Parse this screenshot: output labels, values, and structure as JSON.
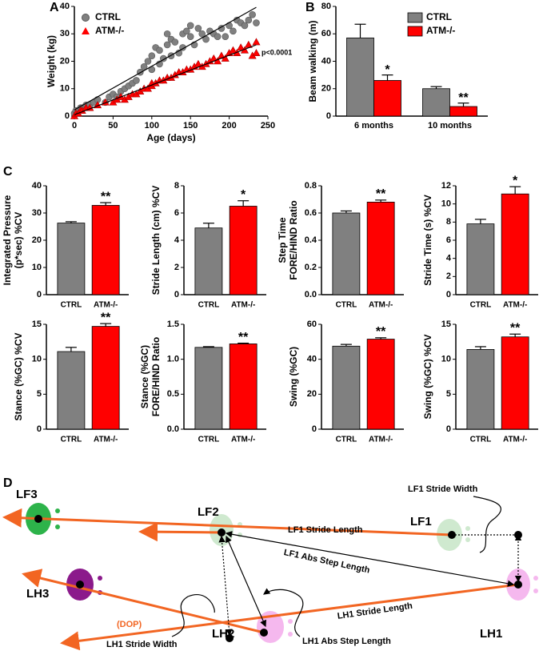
{
  "chart_data": [
    {
      "type": "scatter",
      "panel": "A",
      "xlabel": "Age (days)",
      "ylabel": "Weight (kg)",
      "xlim": [
        0,
        250
      ],
      "xticks": [
        0,
        50,
        100,
        150,
        200,
        250
      ],
      "ylim": [
        0,
        40
      ],
      "yticks": [
        0,
        10,
        20,
        30,
        40
      ],
      "annotation": "p<0.0001",
      "trendline": true,
      "series": [
        {
          "name": "CTRL",
          "color": "#808080",
          "marker": "circle",
          "x": [
            0,
            2,
            5,
            8,
            10,
            15,
            20,
            25,
            30,
            40,
            45,
            50,
            55,
            60,
            65,
            70,
            75,
            80,
            85,
            90,
            95,
            100,
            100,
            105,
            110,
            110,
            115,
            120,
            120,
            125,
            125,
            130,
            135,
            140,
            140,
            145,
            150,
            150,
            155,
            160,
            165,
            170,
            175,
            180,
            185,
            190,
            195,
            200,
            205,
            210,
            215,
            220,
            225,
            230,
            235
          ],
          "y": [
            1,
            2,
            2,
            3,
            3,
            4,
            4,
            5,
            6,
            5,
            7,
            8,
            7,
            9,
            10,
            11,
            12,
            13,
            16,
            18,
            20,
            17,
            22,
            25,
            19,
            24,
            21,
            26,
            30,
            28,
            22,
            27,
            23,
            30,
            25,
            31,
            29,
            33,
            26,
            32,
            30,
            28,
            31,
            30,
            29,
            32,
            29,
            33,
            31,
            35,
            34,
            33,
            35,
            37,
            34
          ]
        },
        {
          "name": "ATM-/-",
          "color": "#ff0000",
          "marker": "triangle",
          "x": [
            0,
            2,
            5,
            8,
            10,
            15,
            20,
            30,
            40,
            50,
            55,
            60,
            65,
            70,
            75,
            80,
            85,
            90,
            95,
            100,
            100,
            105,
            110,
            115,
            120,
            125,
            130,
            135,
            140,
            145,
            150,
            155,
            160,
            165,
            170,
            175,
            180,
            185,
            190,
            195,
            200,
            205,
            210,
            215,
            220,
            225,
            230,
            235,
            235
          ],
          "y": [
            0,
            1,
            1,
            2,
            2,
            3,
            3,
            4,
            5,
            5,
            6,
            7,
            6,
            7,
            8,
            8,
            9,
            10,
            10,
            11,
            12,
            12,
            13,
            13,
            14,
            14,
            15,
            16,
            16,
            17,
            17,
            18,
            19,
            18,
            19,
            20,
            21,
            20,
            22,
            21,
            23,
            24,
            23,
            25,
            24,
            26,
            22,
            27,
            23
          ]
        }
      ]
    },
    {
      "type": "grouped-bar",
      "panel": "B",
      "ylabel": "Beam walking (m)",
      "categories": [
        "6 months",
        "10 months"
      ],
      "ylim": [
        0,
        80
      ],
      "yticks": [
        0,
        20,
        40,
        60,
        80
      ],
      "series": [
        {
          "name": "CTRL",
          "color": "#808080",
          "values": [
            57,
            20
          ],
          "errors": [
            10,
            1.5
          ]
        },
        {
          "name": "ATM-/-",
          "color": "#ff0000",
          "values": [
            26,
            7
          ],
          "errors": [
            4,
            2.5
          ],
          "annotations": [
            "*",
            "**"
          ]
        }
      ]
    },
    {
      "type": "bar",
      "panel": "C",
      "ylabel": [
        "Integrated Pressure",
        "(p*sec) %CV"
      ],
      "categories": [
        "CTRL",
        "ATM-/-"
      ],
      "colors": [
        "#808080",
        "#ff0000"
      ],
      "values": [
        26.3,
        32.8
      ],
      "errors": [
        0.5,
        1.0
      ],
      "annotation": "**",
      "ylim": [
        0,
        40
      ],
      "yticks": [
        0,
        10,
        20,
        30,
        40
      ]
    },
    {
      "type": "bar",
      "ylabel": [
        "Stride Length (cm) %CV"
      ],
      "categories": [
        "CTRL",
        "ATM-/-"
      ],
      "colors": [
        "#808080",
        "#ff0000"
      ],
      "values": [
        4.9,
        6.5
      ],
      "errors": [
        0.35,
        0.4
      ],
      "annotation": "*",
      "ylim": [
        0,
        8
      ],
      "yticks": [
        0,
        2,
        4,
        6,
        8
      ]
    },
    {
      "type": "bar",
      "ylabel": [
        "Step Time",
        "FORE/HIND Ratio"
      ],
      "categories": [
        "CTRL",
        "ATM-/-"
      ],
      "colors": [
        "#808080",
        "#ff0000"
      ],
      "values": [
        0.6,
        0.68
      ],
      "errors": [
        0.015,
        0.015
      ],
      "annotation": "**",
      "ylim": [
        0,
        0.8
      ],
      "yticks": [
        {
          "value": 0,
          "label": "0.0"
        },
        0.2,
        0.4,
        0.6,
        0.8
      ]
    },
    {
      "type": "bar",
      "ylabel": [
        "Stride Time (s) %CV"
      ],
      "categories": [
        "CTRL",
        "ATM-/-"
      ],
      "colors": [
        "#808080",
        "#ff0000"
      ],
      "values": [
        7.8,
        11.1
      ],
      "errors": [
        0.5,
        0.8
      ],
      "annotation": "*",
      "ylim": [
        0,
        12
      ],
      "yticks": [
        0,
        2,
        4,
        6,
        8,
        10,
        12
      ]
    },
    {
      "type": "bar",
      "ylabel": [
        "Stance (%GC) %CV"
      ],
      "categories": [
        "CTRL",
        "ATM-/-"
      ],
      "colors": [
        "#808080",
        "#ff0000"
      ],
      "values": [
        11.1,
        14.7
      ],
      "errors": [
        0.6,
        0.4
      ],
      "annotation": "**",
      "ylim": [
        0,
        15
      ],
      "yticks": [
        0,
        5,
        10,
        15
      ]
    },
    {
      "type": "bar",
      "ylabel": [
        "Stance (%GC)",
        "FORE/HIND Ratio"
      ],
      "categories": [
        "CTRL",
        "ATM-/-"
      ],
      "colors": [
        "#808080",
        "#ff0000"
      ],
      "values": [
        1.17,
        1.22
      ],
      "errors": [
        0.01,
        0.01
      ],
      "annotation": "**",
      "ylim": [
        0,
        1.5
      ],
      "yticks": [
        {
          "value": 0,
          "label": "0.0"
        },
        0.5,
        {
          "value": 1,
          "label": "1.0"
        },
        1.5
      ]
    },
    {
      "type": "bar",
      "ylabel": [
        "Swing (%GC)"
      ],
      "categories": [
        "CTRL",
        "ATM-/-"
      ],
      "colors": [
        "#808080",
        "#ff0000"
      ],
      "values": [
        47.5,
        51.5
      ],
      "errors": [
        1,
        0.8
      ],
      "annotation": "**",
      "ylim": [
        0,
        60
      ],
      "yticks": [
        0,
        20,
        40,
        60
      ]
    },
    {
      "type": "bar",
      "ylabel": [
        "Swing (%GC) %CV"
      ],
      "categories": [
        "CTRL",
        "ATM-/-"
      ],
      "colors": [
        "#808080",
        "#ff0000"
      ],
      "values": [
        11.4,
        13.2
      ],
      "errors": [
        0.4,
        0.4
      ],
      "annotation": "**",
      "ylim": [
        0,
        15
      ],
      "yticks": [
        0,
        5,
        10,
        15
      ]
    }
  ],
  "diagram": {
    "panel": "D",
    "paws": [
      "LF3",
      "LF2",
      "LF1",
      "LH3",
      "LH2",
      "LH1"
    ],
    "direction": "(DOP)",
    "measures": [
      "LF1 Stride Width",
      "LF1 Stride Length",
      "LF1 Abs Step Length",
      "LH1 Stride Length",
      "LH1 Stride Width",
      "LH1 Abs Step Length"
    ]
  }
}
